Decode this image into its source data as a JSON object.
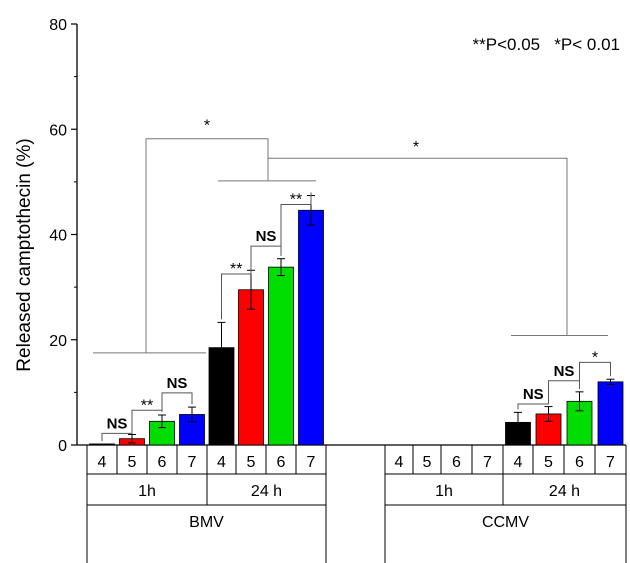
{
  "chart_data": {
    "type": "bar",
    "ylabel": "Released camptothecin (%)",
    "ylim": [
      0,
      80
    ],
    "yticks": [
      "0",
      "20",
      "40",
      "60",
      "80"
    ],
    "pvalue_legend": "**P<0.05   *P< 0.01",
    "legend_position": "top-right",
    "grid": false,
    "groups": [
      {
        "name": "BMV",
        "time_labels": [
          "1h",
          "24 h"
        ]
      },
      {
        "name": "CCMV",
        "time_labels": [
          "1h",
          "24 h"
        ]
      }
    ],
    "ph_labels": [
      "4",
      "5",
      "6",
      "7"
    ],
    "series_colors": [
      "#000000",
      "#ff0000",
      "#00dd00",
      "#0000ff"
    ],
    "bars": [
      {
        "group": "BMV",
        "time": "1h",
        "ph": "4",
        "value": 0.2,
        "error": 0
      },
      {
        "group": "BMV",
        "time": "1h",
        "ph": "5",
        "value": 1.2,
        "error": 0.8
      },
      {
        "group": "BMV",
        "time": "1h",
        "ph": "6",
        "value": 4.5,
        "error": 1.2
      },
      {
        "group": "BMV",
        "time": "1h",
        "ph": "7",
        "value": 5.8,
        "error": 1.4
      },
      {
        "group": "BMV",
        "time": "24 h",
        "ph": "4",
        "value": 18.5,
        "error": 4.8
      },
      {
        "group": "BMV",
        "time": "24 h",
        "ph": "5",
        "value": 29.5,
        "error": 3.7
      },
      {
        "group": "BMV",
        "time": "24 h",
        "ph": "6",
        "value": 33.8,
        "error": 1.6
      },
      {
        "group": "BMV",
        "time": "24 h",
        "ph": "7",
        "value": 44.6,
        "error": 2.8
      },
      {
        "group": "CCMV",
        "time": "1h",
        "ph": "4",
        "value": 0,
        "error": 0
      },
      {
        "group": "CCMV",
        "time": "1h",
        "ph": "5",
        "value": 0,
        "error": 0
      },
      {
        "group": "CCMV",
        "time": "1h",
        "ph": "6",
        "value": 0,
        "error": 0
      },
      {
        "group": "CCMV",
        "time": "1h",
        "ph": "7",
        "value": 0,
        "error": 0
      },
      {
        "group": "CCMV",
        "time": "24 h",
        "ph": "4",
        "value": 4.3,
        "error": 1.9
      },
      {
        "group": "CCMV",
        "time": "24 h",
        "ph": "5",
        "value": 5.9,
        "error": 1.4
      },
      {
        "group": "CCMV",
        "time": "24 h",
        "ph": "6",
        "value": 8.3,
        "error": 1.8
      },
      {
        "group": "CCMV",
        "time": "24 h",
        "ph": "7",
        "value": 12.0,
        "error": 0.5
      }
    ],
    "annotations": [
      {
        "text": "NS",
        "between": "BMV 1h pH4 vs pH5"
      },
      {
        "text": "**",
        "between": "BMV 1h pH5 vs pH6"
      },
      {
        "text": "NS",
        "between": "BMV 1h pH6 vs pH7"
      },
      {
        "text": "**",
        "between": "BMV 24h pH4 vs pH5"
      },
      {
        "text": "NS",
        "between": "BMV 24h pH5 vs pH6"
      },
      {
        "text": "**",
        "between": "BMV 24h pH6 vs pH7"
      },
      {
        "text": "NS",
        "between": "CCMV 24h pH4 vs pH5"
      },
      {
        "text": "NS",
        "between": "CCMV 24h pH5 vs pH6"
      },
      {
        "text": "*",
        "between": "CCMV 24h pH6 vs pH7"
      },
      {
        "text": "*",
        "between": "BMV 1h vs BMV 24h"
      },
      {
        "text": "*",
        "between": "BMV 24h vs CCMV 24h"
      }
    ]
  }
}
